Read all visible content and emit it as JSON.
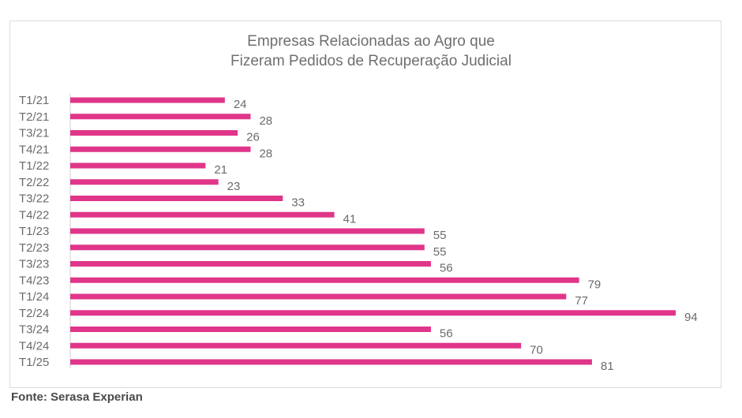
{
  "chart_data": {
    "type": "bar",
    "orientation": "horizontal",
    "title_lines": [
      "Empresas Relacionadas ao Agro que",
      "Fizeram Pedidos de Recuperação Judicial"
    ],
    "categories": [
      "T1/21",
      "T2/21",
      "T3/21",
      "T4/21",
      "T1/22",
      "T2/22",
      "T3/22",
      "T4/22",
      "T1/23",
      "T2/23",
      "T3/23",
      "T4/23",
      "T1/24",
      "T2/24",
      "T3/24",
      "T4/24",
      "T1/25"
    ],
    "values": [
      24,
      28,
      26,
      28,
      21,
      23,
      33,
      41,
      55,
      55,
      56,
      79,
      77,
      94,
      56,
      70,
      81
    ],
    "data_labels": true,
    "xlim": [
      0,
      94
    ],
    "grid": false,
    "bar_color": "#e0368a"
  },
  "source": "Fonte: Serasa Experian"
}
